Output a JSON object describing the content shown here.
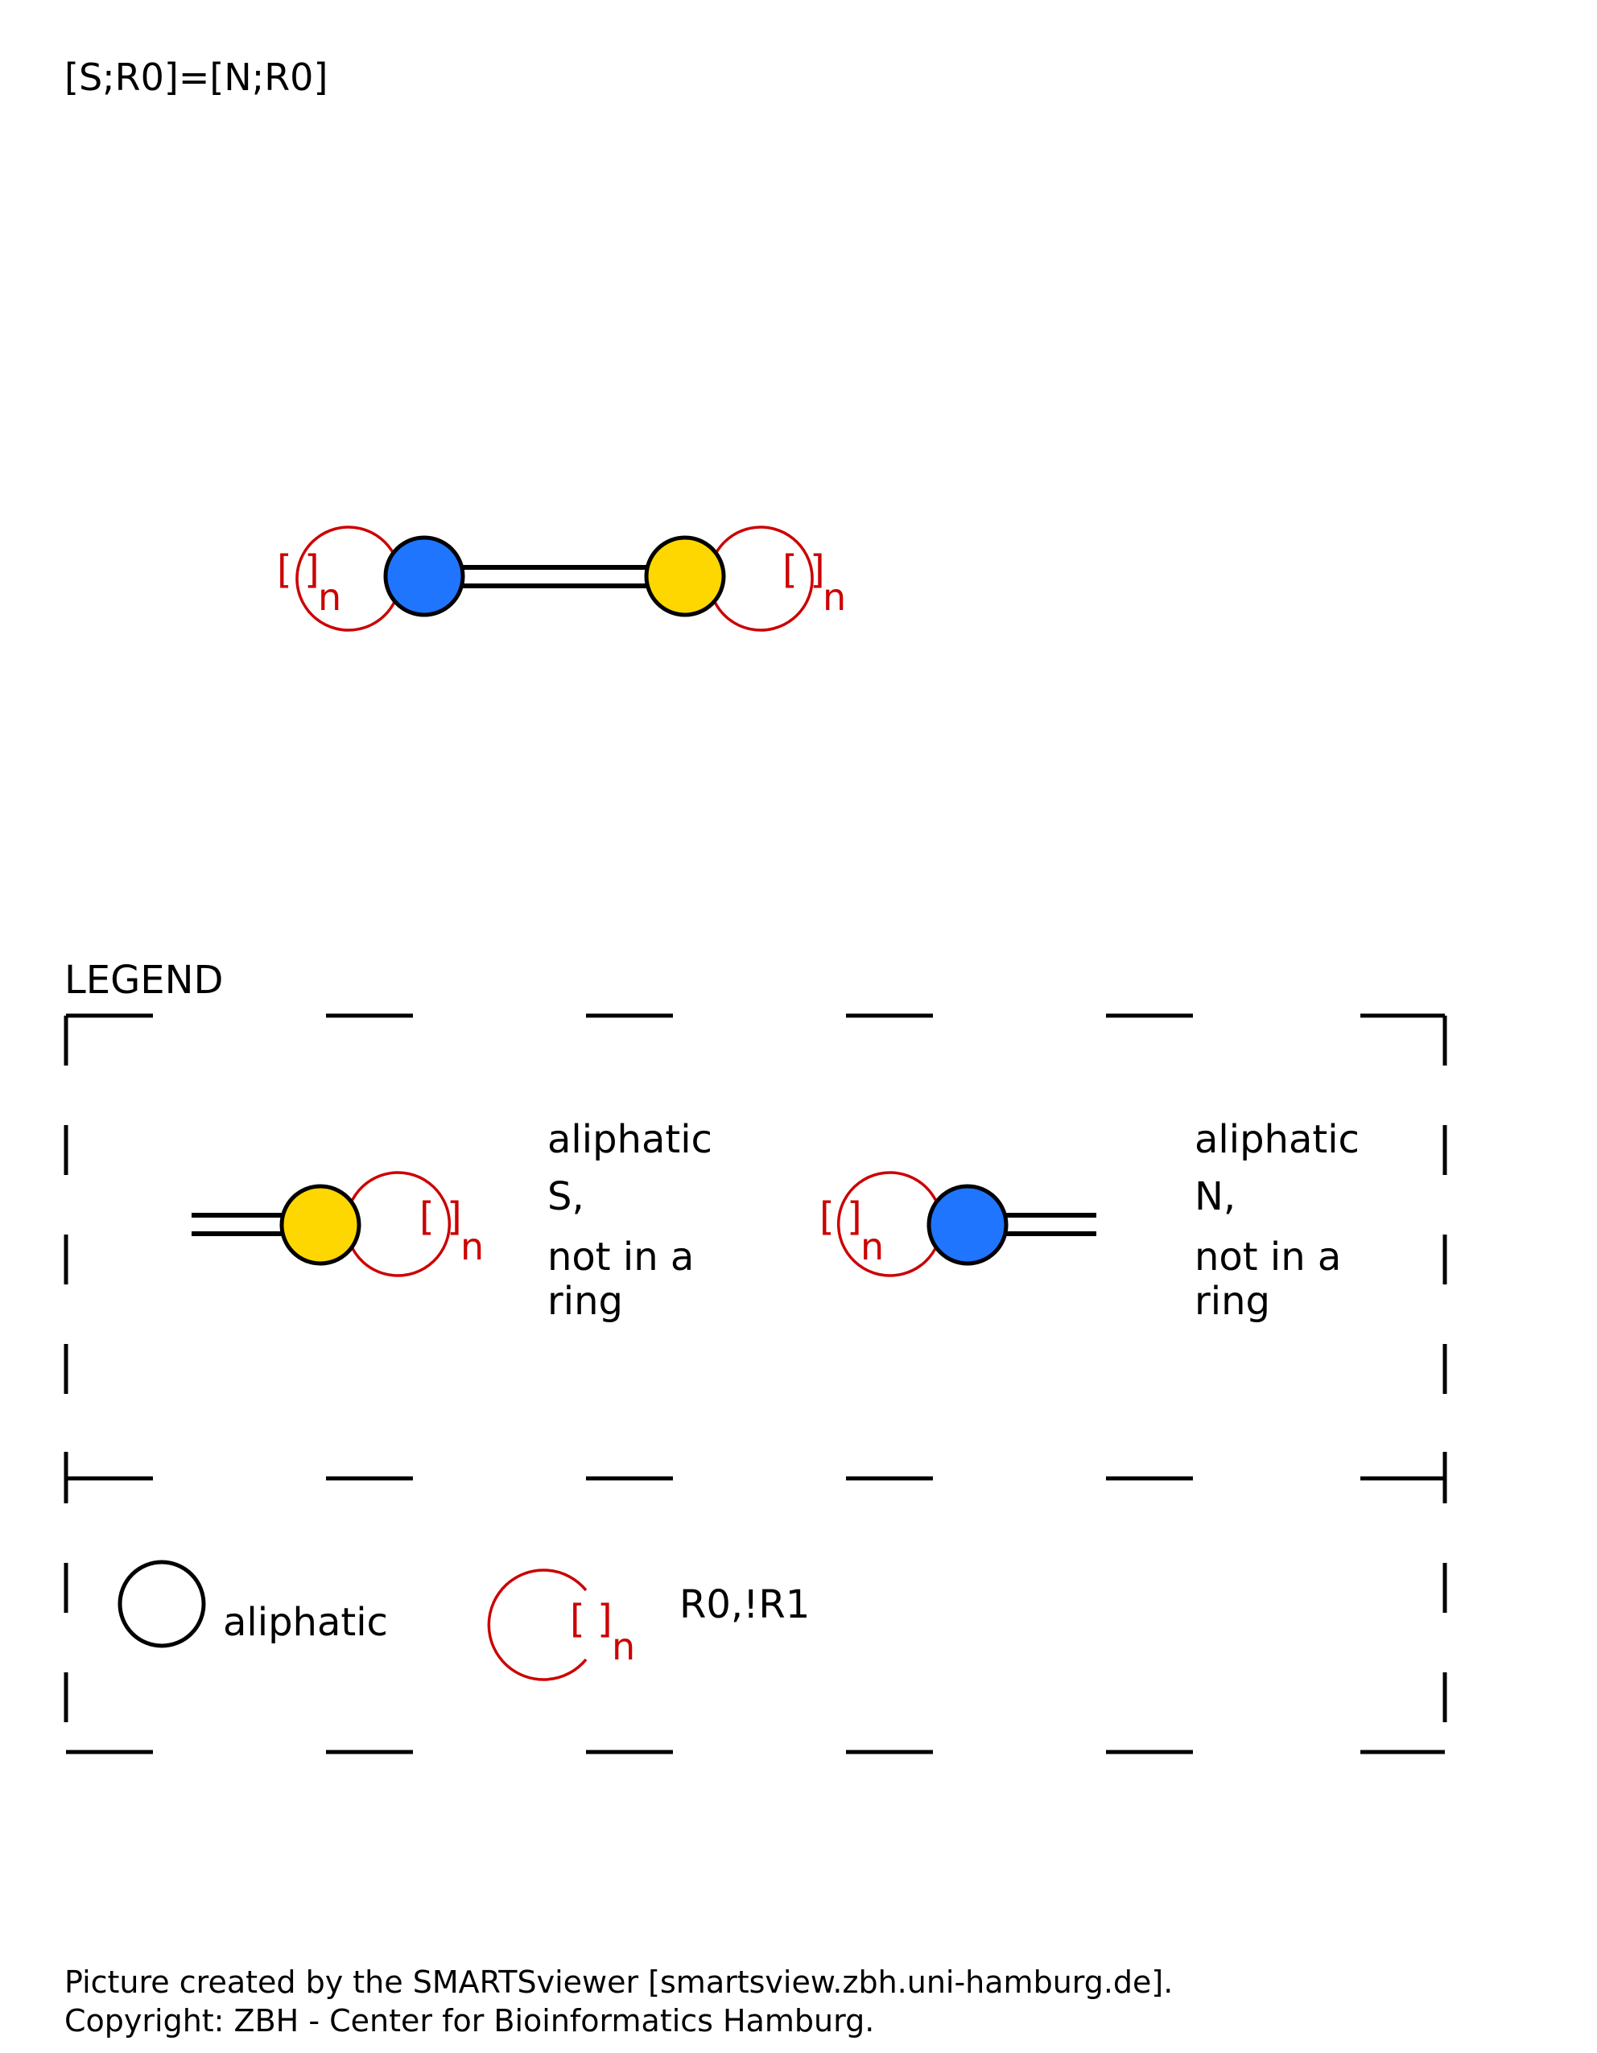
{
  "smarts": "[S;R0]=[N;R0]",
  "colors": {
    "nitrogen": "#1f75fe",
    "sulfur": "#ffd700",
    "ring_annotation": "#cc0000",
    "outline": "#000000"
  },
  "molecule": {
    "atoms": [
      {
        "element": "N",
        "color_key": "nitrogen",
        "aromatic": false,
        "ring": "R0"
      },
      {
        "element": "S",
        "color_key": "sulfur",
        "aromatic": false,
        "ring": "R0"
      }
    ],
    "bond": "double",
    "ring_bracket": "[ ]",
    "ring_sub": "n"
  },
  "legend": {
    "title": "LEGEND",
    "entries": [
      {
        "line1": "aliphatic",
        "line2": "S,",
        "line3": "not in a",
        "line4": "ring"
      },
      {
        "line1": "aliphatic",
        "line2": "N,",
        "line3": "not in a",
        "line4": "ring"
      }
    ],
    "key_aliphatic": "aliphatic",
    "key_ring": "R0,!R1",
    "ring_bracket": "[ ]",
    "ring_sub": "n"
  },
  "footer": {
    "line1": "Picture created by the SMARTSviewer [smartsview.zbh.uni-hamburg.de].",
    "line2": "Copyright: ZBH - Center for Bioinformatics Hamburg."
  }
}
